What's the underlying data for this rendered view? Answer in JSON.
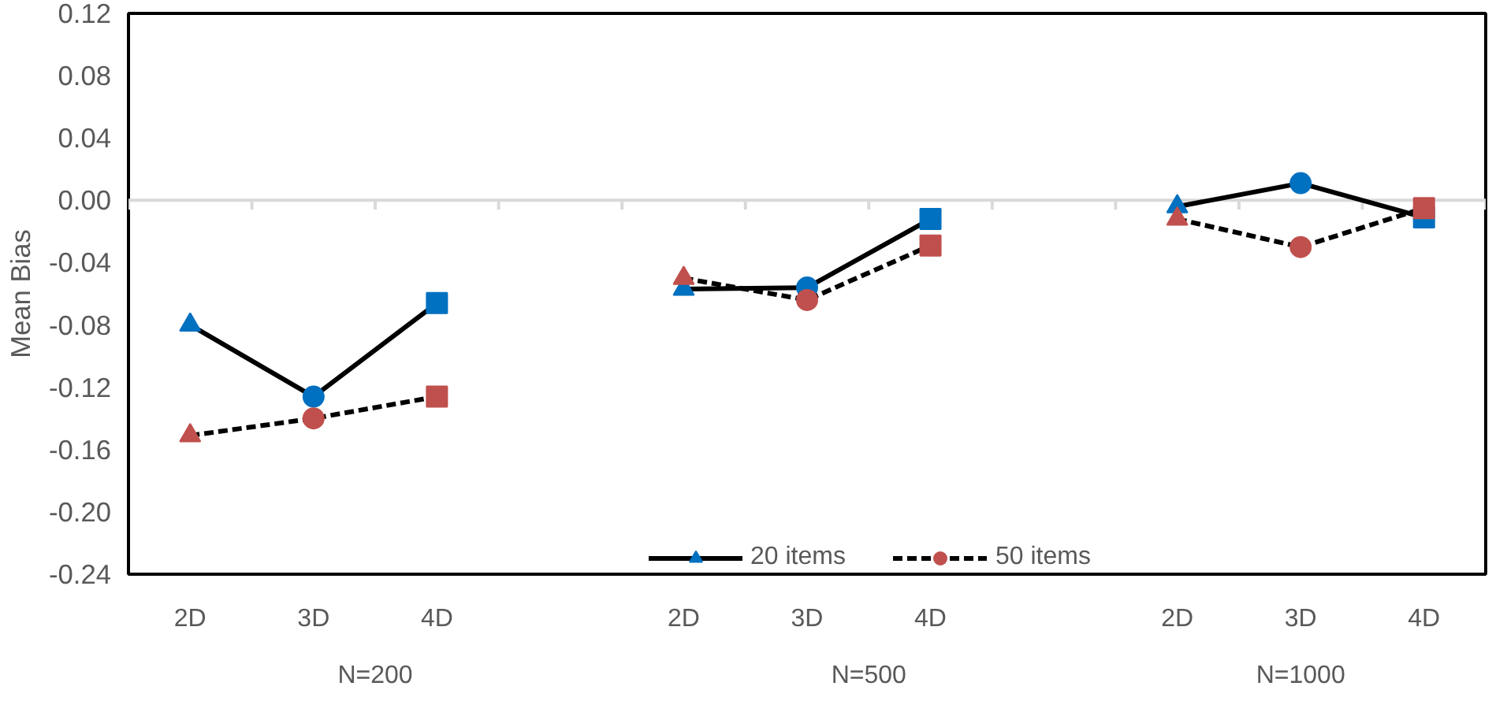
{
  "chart_data": {
    "type": "line",
    "ylabel": "Mean Bias",
    "categories": [
      "2D",
      "3D",
      "4D",
      null,
      "2D",
      "3D",
      "4D",
      null,
      "2D",
      "3D",
      "4D"
    ],
    "annotations": [
      "N=200",
      "N=500",
      "N=1000"
    ],
    "ylim": [
      -0.24,
      0.12
    ],
    "yticks": [
      {
        "value": -0.24,
        "label": "-0.24"
      },
      {
        "value": -0.2,
        "label": "-0.20"
      },
      {
        "value": -0.16,
        "label": "-0.16"
      },
      {
        "value": -0.12,
        "label": "-0.12"
      },
      {
        "value": -0.08,
        "label": "-0.08"
      },
      {
        "value": -0.04,
        "label": "-0.04"
      },
      {
        "value": 0,
        "label": "0.00"
      },
      {
        "value": 0.04,
        "label": "0.04"
      },
      {
        "value": 0.08,
        "label": "0.08"
      },
      {
        "value": 0.12,
        "label": "0.12"
      }
    ],
    "legend": "bottom",
    "series": [
      {
        "name": "20 items",
        "color": "#000000",
        "line_style": "solid",
        "colors": [
          "#0070c0",
          "#0070c0",
          "#0070c0",
          null,
          "#0070c0",
          "#0070c0",
          "#0070c0",
          null,
          "#0070c0",
          "#0070c0",
          "#0070c0"
        ],
        "marker": [
          "triangle",
          "circle",
          "square",
          null,
          "triangle",
          "circle",
          "square",
          null,
          "triangle",
          "circle",
          "square"
        ],
        "values": [
          -0.08,
          -0.126,
          -0.066,
          null,
          -0.057,
          -0.056,
          -0.012,
          null,
          -0.004,
          0.011,
          -0.011
        ]
      },
      {
        "name": "50 items",
        "color": "#000000",
        "line_style": "dashed",
        "colors": [
          "#c0504d",
          "#c0504d",
          "#c0504d",
          null,
          "#c0504d",
          "#c0504d",
          "#c0504d",
          null,
          "#c0504d",
          "#c0504d",
          "#c0504d"
        ],
        "marker": [
          "triangle",
          "circle",
          "square",
          null,
          "triangle",
          "circle",
          "square",
          null,
          "triangle",
          "circle",
          "square"
        ],
        "values": [
          -0.151,
          -0.14,
          -0.126,
          null,
          -0.05,
          -0.064,
          -0.029,
          null,
          -0.012,
          -0.03,
          -0.005
        ]
      }
    ]
  }
}
